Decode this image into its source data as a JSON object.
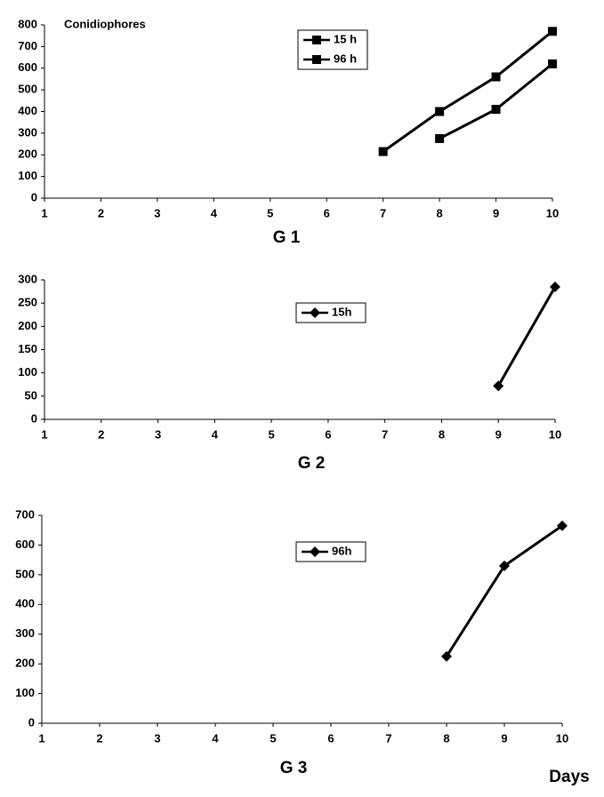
{
  "chart_data": [
    {
      "type": "line",
      "title": "Conidiophores",
      "x_label": "G 1",
      "marker": "square",
      "xlim": [
        1,
        10
      ],
      "xticks": [
        1,
        2,
        3,
        4,
        5,
        6,
        7,
        8,
        9,
        10
      ],
      "ylim": [
        0,
        800
      ],
      "yticks": [
        0,
        100,
        200,
        300,
        400,
        500,
        600,
        700,
        800
      ],
      "series": [
        {
          "name": "15 h",
          "color": "#000000",
          "x": [
            7,
            8,
            9,
            10
          ],
          "values": [
            215,
            400,
            560,
            770
          ]
        },
        {
          "name": "96 h",
          "color": "#000000",
          "x": [
            8,
            9,
            10
          ],
          "values": [
            275,
            410,
            620
          ]
        }
      ]
    },
    {
      "type": "line",
      "x_label": "G 2",
      "marker": "diamond",
      "xlim": [
        1,
        10
      ],
      "xticks": [
        1,
        2,
        3,
        4,
        5,
        6,
        7,
        8,
        9,
        10
      ],
      "ylim": [
        0,
        300
      ],
      "yticks": [
        0,
        50,
        100,
        150,
        200,
        250,
        300
      ],
      "series": [
        {
          "name": "15h",
          "color": "#000000",
          "x": [
            9,
            10
          ],
          "values": [
            72,
            285
          ]
        }
      ]
    },
    {
      "type": "line",
      "x_label": "G 3",
      "x_unit_label": "Days",
      "marker": "diamond",
      "xlim": [
        1,
        10
      ],
      "xticks": [
        1,
        2,
        3,
        4,
        5,
        6,
        7,
        8,
        9,
        10
      ],
      "ylim": [
        0,
        700
      ],
      "yticks": [
        0,
        100,
        200,
        300,
        400,
        500,
        600,
        700
      ],
      "series": [
        {
          "name": "96h",
          "color": "#000000",
          "x": [
            8,
            9,
            10
          ],
          "values": [
            225,
            530,
            665
          ]
        }
      ]
    }
  ]
}
